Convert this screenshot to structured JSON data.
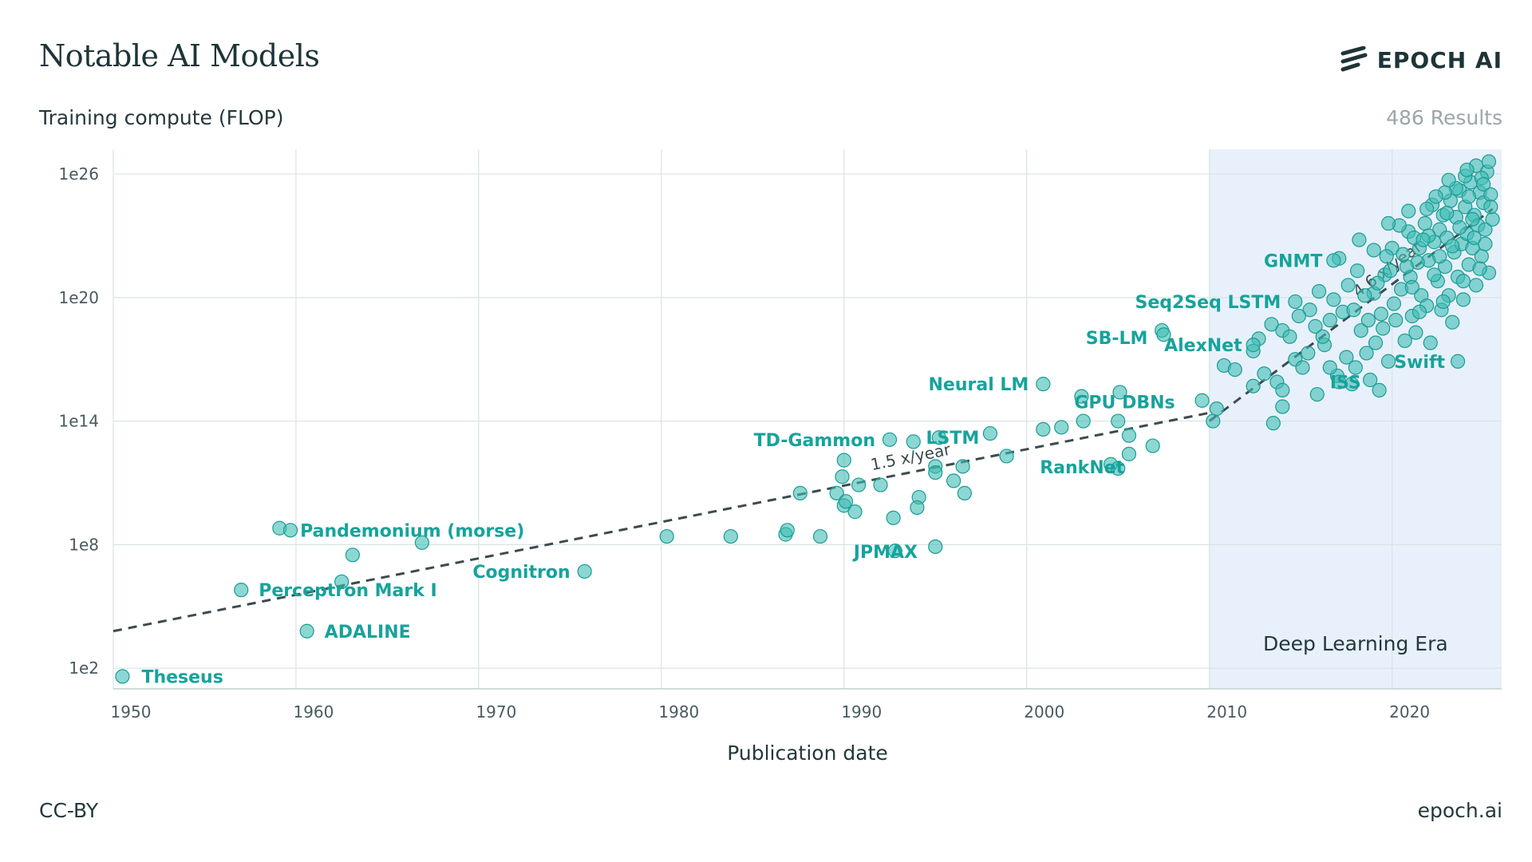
{
  "title": "Notable AI Models",
  "brand": "EPOCH AI",
  "results": "486 Results",
  "footer": {
    "license": "CC-BY",
    "site": "epoch.ai"
  },
  "colors": {
    "point": "#3fbdb4",
    "point_stroke": "#1a9c94",
    "label": "#16a39c",
    "era_bg": "#e8f1fb",
    "trend": "#3c4b4f"
  },
  "chart_data": {
    "type": "scatter",
    "xlabel": "Publication date",
    "ylabel": "Training compute (FLOP)",
    "x_range": [
      1950,
      2026
    ],
    "y_log10_range": [
      1,
      27.2
    ],
    "y_scale": "log",
    "x_ticks": [
      1950,
      1960,
      1970,
      1980,
      1990,
      2000,
      2010,
      2020
    ],
    "x_tick_labels": [
      "1950",
      "1960",
      "1970",
      "1980",
      "1990",
      "2000",
      "2010",
      "2020"
    ],
    "y_ticks_log10": [
      2,
      8,
      14,
      20,
      26
    ],
    "y_tick_labels": [
      "1e2",
      "1e8",
      "1e14",
      "1e20",
      "1e26"
    ],
    "grid": true,
    "shaded_region": {
      "label": "Deep Learning Era",
      "x_start": 2010,
      "x_end": 2026
    },
    "trends": [
      {
        "label": "1.5 x/year",
        "x_start": 1950,
        "y_start_log10": 3.8,
        "x_end": 2010,
        "y_end_log10": 14.4
      },
      {
        "label": "4.6 x/year",
        "x_start": 2010,
        "y_start_log10": 14.0,
        "x_end": 2025.5,
        "y_end_log10": 24.3
      }
    ],
    "labeled_points": [
      {
        "name": "Theseus",
        "x": 1950.5,
        "y_log10": 1.6
      },
      {
        "name": "Perceptron Mark I",
        "x": 1957,
        "y_log10": 5.8
      },
      {
        "name": "ADALINE",
        "x": 1960.6,
        "y_log10": 3.8
      },
      {
        "name": "Pandemonium (morse)",
        "x": 1959.7,
        "y_log10": 8.7
      },
      {
        "name": "Cognitron",
        "x": 1975.8,
        "y_log10": 6.7
      },
      {
        "name": "TD-Gammon",
        "x": 1992.5,
        "y_log10": 13.1
      },
      {
        "name": "JPMAX",
        "x": 1992.8,
        "y_log10": 7.7
      },
      {
        "name": "LSTM",
        "x": 1995.2,
        "y_log10": 13.2
      },
      {
        "name": "Neural LM",
        "x": 2000.9,
        "y_log10": 15.8
      },
      {
        "name": "GPU DBNs",
        "x": 2005.1,
        "y_log10": 15.4
      },
      {
        "name": "RankNet",
        "x": 2005.0,
        "y_log10": 11.7
      },
      {
        "name": "SB-LM",
        "x": 2007.5,
        "y_log10": 18.2
      },
      {
        "name": "AlexNet",
        "x": 2012.4,
        "y_log10": 17.7
      },
      {
        "name": "ISS",
        "x": 2017.1,
        "y_log10": 15.9
      },
      {
        "name": "Seq2Seq LSTM",
        "x": 2014.7,
        "y_log10": 19.8
      },
      {
        "name": "GNMT",
        "x": 2016.8,
        "y_log10": 21.8
      },
      {
        "name": "Swift",
        "x": 2023.6,
        "y_log10": 16.9
      }
    ],
    "other_points": [
      [
        1959.1,
        8.8
      ],
      [
        1962.5,
        6.2
      ],
      [
        1963.1,
        7.5
      ],
      [
        1966.9,
        8.1
      ],
      [
        1980.3,
        8.4
      ],
      [
        1983.8,
        8.4
      ],
      [
        1986.8,
        8.5
      ],
      [
        1986.9,
        8.7
      ],
      [
        1987.6,
        10.5
      ],
      [
        1988.7,
        8.4
      ],
      [
        1989.6,
        10.5
      ],
      [
        1989.9,
        11.3
      ],
      [
        1990.0,
        12.1
      ],
      [
        1990.0,
        9.9
      ],
      [
        1990.1,
        10.1
      ],
      [
        1990.6,
        9.6
      ],
      [
        1990.8,
        10.9
      ],
      [
        1992.0,
        10.9
      ],
      [
        1992.7,
        9.3
      ],
      [
        1993.8,
        13.0
      ],
      [
        1994.1,
        10.3
      ],
      [
        1994.0,
        9.8
      ],
      [
        1995.0,
        11.8
      ],
      [
        1995.0,
        11.5
      ],
      [
        1995.0,
        7.9
      ],
      [
        1996.0,
        11.1
      ],
      [
        1996.5,
        11.8
      ],
      [
        1996.6,
        10.5
      ],
      [
        1998.0,
        13.4
      ],
      [
        1998.9,
        12.3
      ],
      [
        2000.9,
        13.6
      ],
      [
        2001.9,
        13.7
      ],
      [
        2003.1,
        14.0
      ],
      [
        2003.0,
        15.2
      ],
      [
        2004.6,
        11.9
      ],
      [
        2005.0,
        14.0
      ],
      [
        2005.6,
        13.3
      ],
      [
        2005.6,
        12.4
      ],
      [
        2006.9,
        12.8
      ],
      [
        2007.4,
        18.4
      ],
      [
        2009.6,
        15.0
      ],
      [
        2010.2,
        14.0
      ],
      [
        2010.4,
        14.6
      ],
      [
        2010.8,
        16.7
      ],
      [
        2011.4,
        16.5
      ],
      [
        2012.4,
        17.4
      ],
      [
        2012.7,
        18.0
      ],
      [
        2012.4,
        15.7
      ],
      [
        2013.0,
        16.3
      ],
      [
        2013.4,
        18.7
      ],
      [
        2013.5,
        13.9
      ],
      [
        2013.7,
        15.9
      ],
      [
        2014.0,
        15.5
      ],
      [
        2014.0,
        14.7
      ],
      [
        2014.0,
        18.4
      ],
      [
        2014.4,
        18.1
      ],
      [
        2014.7,
        17.0
      ],
      [
        2015.1,
        16.6
      ],
      [
        2015.5,
        19.4
      ],
      [
        2015.8,
        18.6
      ],
      [
        2016.0,
        20.3
      ],
      [
        2016.3,
        17.7
      ],
      [
        2016.6,
        18.9
      ],
      [
        2016.8,
        19.9
      ],
      [
        2017.1,
        21.9
      ],
      [
        2017.0,
        16.2
      ],
      [
        2017.3,
        19.3
      ],
      [
        2017.6,
        20.6
      ],
      [
        2017.8,
        15.8
      ],
      [
        2018.0,
        16.6
      ],
      [
        2018.1,
        21.3
      ],
      [
        2018.3,
        18.4
      ],
      [
        2018.6,
        17.3
      ],
      [
        2018.8,
        16.0
      ],
      [
        2019.0,
        20.2
      ],
      [
        2019.1,
        17.8
      ],
      [
        2019.3,
        15.5
      ],
      [
        2019.4,
        19.2
      ],
      [
        2019.6,
        21.1
      ],
      [
        2019.8,
        16.9
      ],
      [
        2020.0,
        22.4
      ],
      [
        2020.2,
        18.9
      ],
      [
        2020.5,
        20.4
      ],
      [
        2020.7,
        17.9
      ],
      [
        2020.9,
        23.2
      ],
      [
        2021.0,
        21.0
      ],
      [
        2021.1,
        19.1
      ],
      [
        2021.3,
        18.3
      ],
      [
        2021.5,
        22.4
      ],
      [
        2021.6,
        20.1
      ],
      [
        2021.8,
        23.6
      ],
      [
        2021.9,
        19.6
      ],
      [
        2022.0,
        21.8
      ],
      [
        2022.1,
        17.8
      ],
      [
        2022.2,
        24.5
      ],
      [
        2022.3,
        22.7
      ],
      [
        2022.5,
        20.8
      ],
      [
        2022.6,
        23.3
      ],
      [
        2022.7,
        19.4
      ],
      [
        2022.8,
        24.0
      ],
      [
        2022.9,
        21.5
      ],
      [
        2023.0,
        22.9
      ],
      [
        2023.1,
        20.1
      ],
      [
        2023.2,
        24.7
      ],
      [
        2023.3,
        18.8
      ],
      [
        2023.4,
        22.2
      ],
      [
        2023.5,
        23.9
      ],
      [
        2023.6,
        21.0
      ],
      [
        2023.7,
        25.2
      ],
      [
        2023.8,
        22.6
      ],
      [
        2023.9,
        19.9
      ],
      [
        2024.0,
        24.4
      ],
      [
        2024.1,
        23.1
      ],
      [
        2024.2,
        21.6
      ],
      [
        2024.3,
        25.6
      ],
      [
        2024.4,
        22.4
      ],
      [
        2024.5,
        24.0
      ],
      [
        2024.6,
        20.6
      ],
      [
        2024.7,
        23.5
      ],
      [
        2024.8,
        25.1
      ],
      [
        2024.9,
        22.0
      ],
      [
        2025.0,
        24.6
      ],
      [
        2025.1,
        23.3
      ],
      [
        2025.2,
        26.1
      ],
      [
        2025.3,
        21.2
      ],
      [
        2025.4,
        25.0
      ],
      [
        2025.5,
        23.8
      ],
      [
        2025.3,
        26.6
      ],
      [
        2024.9,
        25.8
      ],
      [
        2024.6,
        26.4
      ],
      [
        2024.0,
        25.9
      ],
      [
        2023.5,
        25.3
      ],
      [
        2022.9,
        25.1
      ],
      [
        2022.4,
        24.9
      ],
      [
        2021.9,
        24.3
      ],
      [
        2021.2,
        22.9
      ],
      [
        2020.6,
        22.1
      ],
      [
        2019.9,
        21.3
      ],
      [
        2019.2,
        20.7
      ],
      [
        2018.5,
        20.1
      ],
      [
        2017.9,
        19.4
      ],
      [
        2016.2,
        18.1
      ],
      [
        2015.4,
        17.3
      ],
      [
        2014.9,
        19.1
      ],
      [
        2018.2,
        22.8
      ],
      [
        2019.7,
        22.0
      ],
      [
        2020.4,
        23.5
      ],
      [
        2021.4,
        21.7
      ],
      [
        2022.0,
        23.0
      ],
      [
        2023.0,
        24.1
      ],
      [
        2024.2,
        24.9
      ],
      [
        2025.0,
        25.5
      ],
      [
        2024.4,
        23.8
      ],
      [
        2023.7,
        23.4
      ],
      [
        2022.6,
        22.0
      ],
      [
        2021.7,
        22.8
      ],
      [
        2020.8,
        21.5
      ],
      [
        2019.5,
        18.5
      ],
      [
        2018.7,
        18.9
      ],
      [
        2017.5,
        17.1
      ],
      [
        2016.6,
        16.6
      ],
      [
        2015.9,
        15.3
      ],
      [
        2020.1,
        19.7
      ],
      [
        2021.1,
        20.5
      ],
      [
        2022.3,
        21.1
      ],
      [
        2023.3,
        22.5
      ],
      [
        2024.5,
        22.9
      ],
      [
        2025.4,
        24.4
      ],
      [
        2024.8,
        21.4
      ],
      [
        2023.9,
        20.8
      ],
      [
        2022.8,
        19.8
      ],
      [
        2021.5,
        19.3
      ],
      [
        2019.0,
        22.3
      ],
      [
        2025.1,
        22.6
      ],
      [
        2024.1,
        26.2
      ],
      [
        2023.1,
        25.7
      ],
      [
        2020.9,
        24.2
      ],
      [
        2019.8,
        23.6
      ]
    ]
  }
}
